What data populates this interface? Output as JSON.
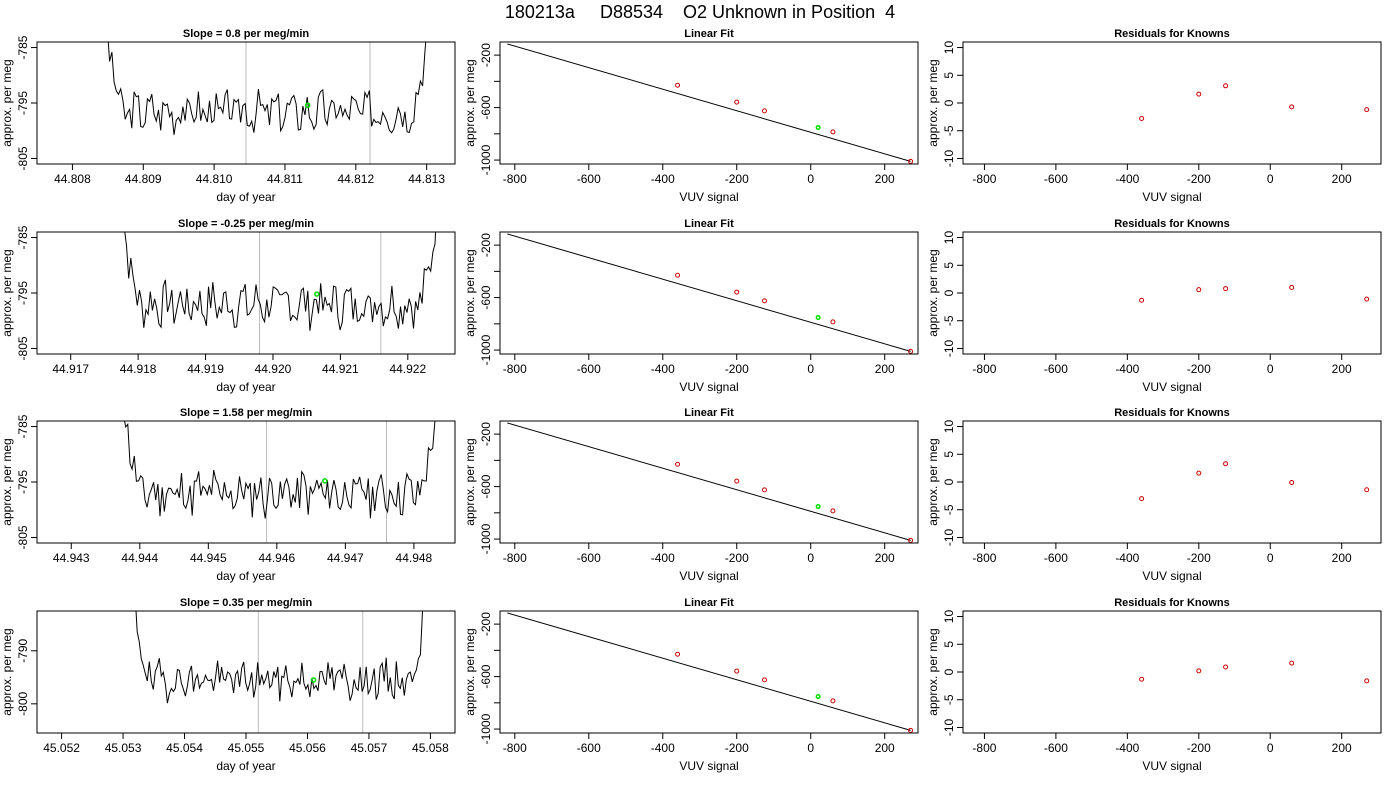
{
  "figure_title": "180213a     D88534    O2 Unknown in Position  4",
  "colors": {
    "line": "#000000",
    "known_point": "#cc0000",
    "unknown_point": "#00dd00",
    "vline": "#bbbbbb",
    "fit_line": "#000000"
  },
  "chart_data": [
    {
      "type": "line",
      "title": "Slope =  0.8  per meg/min",
      "xlabel": "day of year",
      "ylabel": "approx. per meg",
      "xlim": [
        44.8075,
        44.8134
      ],
      "ylim": [
        -806,
        -784
      ],
      "xticks": [
        "44.808",
        "44.809",
        "44.810",
        "44.811",
        "44.812",
        "44.813"
      ],
      "yticks": [
        "-785",
        "-795",
        "-805"
      ],
      "vlines": [
        44.81045,
        44.8122
      ],
      "x_start": 44.8084,
      "x_end": 44.8131,
      "baseline": -796.5,
      "wiggle": 2.0,
      "seed": 3,
      "marker": {
        "x": 44.81132,
        "y": -795.4
      }
    },
    {
      "type": "scatter",
      "title": "Linear Fit",
      "xlabel": "VUV signal",
      "ylabel": "approx. per meg",
      "xlim": [
        -840,
        290
      ],
      "ylim": [
        -1030,
        -100
      ],
      "xticks": [
        "-800",
        "-600",
        "-400",
        "-200",
        "0",
        "200"
      ],
      "yticks": [
        "-200",
        "-600",
        "-1000"
      ],
      "fit": {
        "x": [
          -820,
          270
        ],
        "y": [
          -115,
          -1010
        ]
      },
      "known": {
        "x": [
          -360,
          -200,
          -125,
          60,
          270
        ],
        "y": [
          -430,
          -558,
          -625,
          -785,
          -1010
        ]
      },
      "unknown": {
        "x": [
          20,
          60
        ],
        "y": [
          -752,
          -785
        ]
      }
    },
    {
      "type": "scatter",
      "title": "Residuals for Knowns",
      "xlabel": "VUV signal",
      "ylabel": "approx. per meg",
      "xlim": [
        -860,
        310
      ],
      "ylim": [
        -11,
        11
      ],
      "xticks": [
        "-800",
        "-600",
        "-400",
        "-200",
        "0",
        "200"
      ],
      "yticks": [
        "-10",
        "-5",
        "0",
        "5",
        "10"
      ],
      "known": {
        "x": [
          -360,
          -200,
          -125,
          60,
          270
        ],
        "y": [
          -2.8,
          1.6,
          3.1,
          -0.7,
          -1.2
        ]
      }
    },
    {
      "type": "line",
      "title": "Slope =  -0.25  per meg/min",
      "xlabel": "day of year",
      "ylabel": "approx. per meg",
      "xlim": [
        44.9165,
        44.9227
      ],
      "ylim": [
        -806,
        -784
      ],
      "xticks": [
        "44.917",
        "44.918",
        "44.919",
        "44.920",
        "44.921",
        "44.922"
      ],
      "yticks": [
        "-785",
        "-805"
      ],
      "mid_ytick": "-795",
      "vlines": [
        44.9198,
        44.9216
      ],
      "x_start": 44.9177,
      "x_end": 44.9225,
      "baseline": -797,
      "wiggle": 2.2,
      "seed": 7,
      "marker": {
        "x": 44.92065,
        "y": -795.2
      }
    },
    {
      "type": "scatter",
      "title": "Linear Fit",
      "xlabel": "VUV signal",
      "ylabel": "approx. per meg",
      "xlim": [
        -840,
        290
      ],
      "ylim": [
        -1030,
        -100
      ],
      "xticks": [
        "-800",
        "-600",
        "-400",
        "-200",
        "0",
        "200"
      ],
      "yticks": [
        "-200",
        "-600",
        "-1000"
      ],
      "fit": {
        "x": [
          -820,
          270
        ],
        "y": [
          -115,
          -1010
        ]
      },
      "known": {
        "x": [
          -360,
          -200,
          -125,
          60,
          270
        ],
        "y": [
          -430,
          -558,
          -625,
          -785,
          -1010
        ]
      },
      "unknown": {
        "x": [
          20
        ],
        "y": [
          -752
        ]
      }
    },
    {
      "type": "scatter",
      "title": "Residuals for Knowns",
      "xlabel": "VUV signal",
      "ylabel": "approx. per meg",
      "xlim": [
        -860,
        310
      ],
      "ylim": [
        -11,
        11
      ],
      "xticks": [
        "-800",
        "-600",
        "-400",
        "-200",
        "0",
        "200"
      ],
      "yticks": [
        "-10",
        "-5",
        "0",
        "5",
        "10"
      ],
      "known": {
        "x": [
          -360,
          -200,
          -125,
          60,
          270
        ],
        "y": [
          -1.3,
          0.6,
          0.8,
          1.0,
          -1.1
        ]
      }
    },
    {
      "type": "line",
      "title": "Slope =  1.58  per meg/min",
      "xlabel": "day of year",
      "ylabel": "approx. per meg",
      "xlim": [
        44.9425,
        44.9486
      ],
      "ylim": [
        -806,
        -784
      ],
      "xticks": [
        "44.943",
        "44.944",
        "44.945",
        "44.946",
        "44.947",
        "44.948"
      ],
      "yticks": [
        "-785",
        "-795",
        "-805"
      ],
      "vlines": [
        44.94585,
        44.9476
      ],
      "x_start": 44.9437,
      "x_end": 44.9484,
      "baseline": -797,
      "wiggle": 2.3,
      "seed": 11,
      "marker": {
        "x": 44.9467,
        "y": -794.8
      }
    },
    {
      "type": "scatter",
      "title": "Linear Fit",
      "xlabel": "VUV signal",
      "ylabel": "approx. per meg",
      "xlim": [
        -840,
        290
      ],
      "ylim": [
        -1030,
        -100
      ],
      "xticks": [
        "-800",
        "-600",
        "-400",
        "-200",
        "0",
        "200"
      ],
      "yticks": [
        "-200",
        "-600",
        "-1000"
      ],
      "fit": {
        "x": [
          -820,
          270
        ],
        "y": [
          -115,
          -1010
        ]
      },
      "known": {
        "x": [
          -360,
          -200,
          -125,
          60,
          270
        ],
        "y": [
          -430,
          -558,
          -625,
          -785,
          -1010
        ]
      },
      "unknown": {
        "x": [
          20
        ],
        "y": [
          -752
        ]
      }
    },
    {
      "type": "scatter",
      "title": "Residuals for Knowns",
      "xlabel": "VUV signal",
      "ylabel": "approx. per meg",
      "xlim": [
        -860,
        310
      ],
      "ylim": [
        -11,
        11
      ],
      "xticks": [
        "-800",
        "-600",
        "-400",
        "-200",
        "0",
        "200"
      ],
      "yticks": [
        "-10",
        "-5",
        "0",
        "5",
        "10"
      ],
      "known": {
        "x": [
          -360,
          -200,
          -125,
          60,
          270
        ],
        "y": [
          -3.0,
          1.6,
          3.3,
          -0.1,
          -1.4
        ]
      }
    },
    {
      "type": "line",
      "title": "Slope =  0.35  per meg/min",
      "xlabel": "day of year",
      "ylabel": "approx. per meg",
      "xlim": [
        45.0516,
        45.0584
      ],
      "ylim": [
        -805.5,
        -782.5
      ],
      "xticks": [
        "45.052",
        "45.053",
        "45.054",
        "45.055",
        "45.056",
        "45.057",
        "45.058"
      ],
      "yticks": [
        "-790",
        "-800"
      ],
      "vlines": [
        45.0552,
        45.0569
      ],
      "x_start": 45.0531,
      "x_end": 45.058,
      "baseline": -795.5,
      "wiggle": 2.0,
      "seed": 19,
      "marker": {
        "x": 45.0561,
        "y": -795.5
      }
    },
    {
      "type": "scatter",
      "title": "Linear Fit",
      "xlabel": "VUV signal",
      "ylabel": "approx. per meg",
      "xlim": [
        -840,
        290
      ],
      "ylim": [
        -1030,
        -100
      ],
      "xticks": [
        "-800",
        "-600",
        "-400",
        "-200",
        "0",
        "200"
      ],
      "yticks": [
        "-200",
        "-600",
        "-1000"
      ],
      "fit": {
        "x": [
          -820,
          270
        ],
        "y": [
          -115,
          -1010
        ]
      },
      "known": {
        "x": [
          -360,
          -200,
          -125,
          60,
          270
        ],
        "y": [
          -430,
          -558,
          -625,
          -785,
          -1010
        ]
      },
      "unknown": {
        "x": [
          20
        ],
        "y": [
          -752
        ]
      }
    },
    {
      "type": "scatter",
      "title": "Residuals for Knowns",
      "xlabel": "VUV signal",
      "ylabel": "approx. per meg",
      "xlim": [
        -860,
        310
      ],
      "ylim": [
        -11,
        11
      ],
      "xticks": [
        "-800",
        "-600",
        "-400",
        "-200",
        "0",
        "200"
      ],
      "yticks": [
        "-10",
        "-5",
        "0",
        "5",
        "10"
      ],
      "known": {
        "x": [
          -360,
          -200,
          -125,
          60,
          270
        ],
        "y": [
          -1.3,
          0.2,
          0.9,
          1.6,
          -1.6
        ]
      }
    }
  ]
}
